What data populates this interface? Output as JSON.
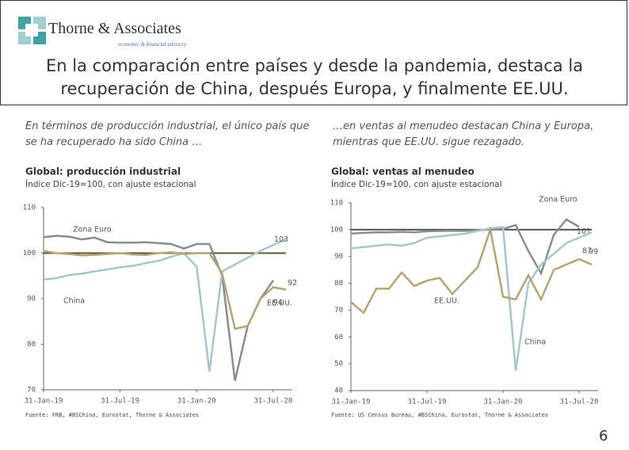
{
  "header": {
    "company": "Thorne & Associates",
    "tagline": "economic & financial advisory",
    "title": "En la comparación entre países y desde la pandemia, destaca la recuperación de China, después Europa, y finalmente EE.UU."
  },
  "page_number": "6",
  "chart_data": [
    {
      "type": "line",
      "caption": "En términos de producción industrial, el único país que se ha recuperado ha sido China …",
      "title": "Global: producción industrial",
      "subtitle": "Índice Dic-19=100, con ajuste estacional",
      "source": "Fuente: FRB, #BSChina, Eurostat, Thorne & Associates",
      "categories": [
        "31-Jan-19",
        null,
        null,
        null,
        null,
        null,
        "31-Jul-19",
        null,
        null,
        null,
        null,
        null,
        "31-Jan-20",
        null,
        null,
        null,
        null,
        null,
        "31-Jul-20",
        null
      ],
      "ylim": [
        70,
        110
      ],
      "yticks": [
        70,
        80,
        90,
        100,
        110
      ],
      "ref_line": 100,
      "ref_color": "#5e5a2e",
      "label_last": true,
      "series": [
        {
          "name": "Zona Euro",
          "color": "#84908f",
          "values": [
            103.5,
            103.8,
            103.6,
            103.0,
            103.4,
            102.4,
            102.3,
            102.3,
            102.4,
            102.2,
            102.0,
            101.0,
            102.0,
            102.0,
            95.0,
            72.0,
            84.0,
            90.0,
            94,
            null
          ]
        },
        {
          "name": "China",
          "color": "#a3c8cc",
          "values": [
            94.2,
            94.5,
            95.2,
            95.5,
            96.0,
            96.4,
            96.9,
            97.2,
            97.8,
            98.3,
            99.2,
            100.0,
            97.0,
            74.0,
            96.0,
            97.5,
            99.0,
            100.5,
            101.8,
            103
          ]
        },
        {
          "name": "EE.UU.",
          "color": "#b8a470",
          "values": [
            100.5,
            100.0,
            99.8,
            99.5,
            99.6,
            99.8,
            100.0,
            99.7,
            99.6,
            100.0,
            100.2,
            99.8,
            100.0,
            100.0,
            95.5,
            83.4,
            84.0,
            90.0,
            92.5,
            92
          ]
        }
      ]
    },
    {
      "type": "line",
      "caption": "…en ventas al menudeo destacan China y Europa, mientras que EE.UU. sigue rezagado.",
      "title": "Global: ventas al menudeo",
      "subtitle": "Índice Dic-19=100, con ajuste estacional",
      "source": "Fuente: US Census Bureau, #BSChina, Eurostat, Thorne & Associates",
      "categories": [
        "31-Jan-19",
        null,
        null,
        null,
        null,
        null,
        "31-Jul-19",
        null,
        null,
        null,
        null,
        null,
        "31-Jan-20",
        null,
        null,
        null,
        null,
        null,
        "31-Jul-20",
        null
      ],
      "ylim": [
        40,
        110
      ],
      "yticks": [
        40,
        50,
        60,
        70,
        80,
        90,
        100,
        110
      ],
      "ref_line": 100,
      "ref_color": "#555555",
      "label_last": true,
      "series": [
        {
          "name": "Zona Euro",
          "color": "#84908f",
          "values": [
            98.5,
            98.8,
            99.0,
            99.0,
            99.2,
            99.0,
            99.4,
            99.5,
            99.6,
            99.5,
            99.8,
            100.0,
            100.3,
            101.7,
            92.0,
            83.7,
            98.0,
            103.8,
            101,
            null
          ]
        },
        {
          "name": "China",
          "color": "#a3c8cc",
          "values": [
            93.0,
            93.5,
            94.0,
            94.5,
            94.0,
            95.0,
            97.0,
            97.5,
            98.0,
            98.5,
            99.5,
            100.5,
            101.0,
            47.4,
            80.0,
            87.0,
            91.0,
            95.0,
            97.0,
            99
          ]
        },
        {
          "name": "EE.UU.",
          "color": "#b8a470",
          "values": [
            73.0,
            69.0,
            78.0,
            78.0,
            84.0,
            79.0,
            81.0,
            82.0,
            76.0,
            81.0,
            86.0,
            100.0,
            75.0,
            74.0,
            83.0,
            74.0,
            85.0,
            87.0,
            89.0,
            87
          ]
        }
      ]
    }
  ]
}
